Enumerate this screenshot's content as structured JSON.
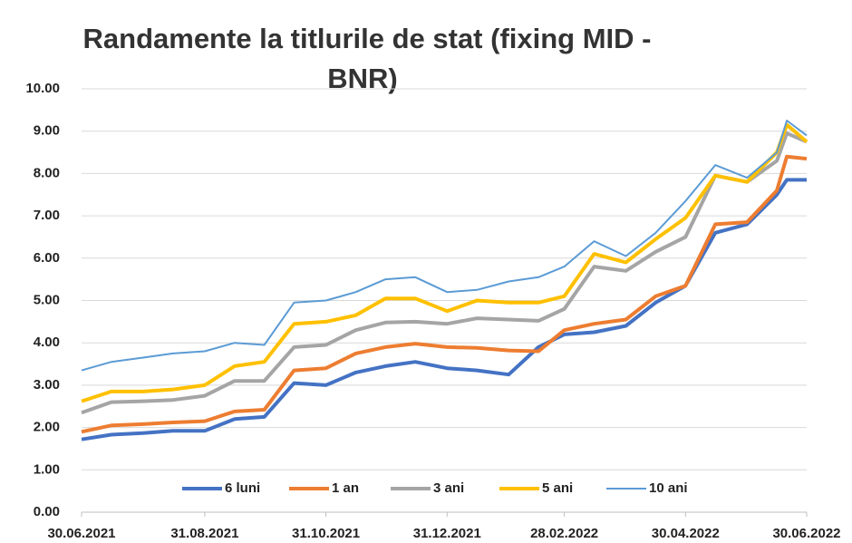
{
  "chart_data": {
    "type": "line",
    "title": [
      "Randamente la titlurile de stat (fixing MID -",
      "BNR)"
    ],
    "x": [
      "30.06.2021",
      "15.07.2021",
      "31.07.2021",
      "15.08.2021",
      "31.08.2021",
      "15.09.2021",
      "30.09.2021",
      "15.10.2021",
      "31.10.2021",
      "15.11.2021",
      "30.11.2021",
      "15.12.2021",
      "31.12.2021",
      "15.01.2022",
      "31.01.2022",
      "15.02.2022",
      "28.02.2022",
      "15.03.2022",
      "31.03.2022",
      "15.04.2022",
      "30.04.2022",
      "15.05.2022",
      "31.05.2022",
      "15.06.2022",
      "20.06.2022",
      "30.06.2022"
    ],
    "series": [
      {
        "name": "6 luni",
        "color": "#4472c4",
        "line_width": 4,
        "values": [
          1.72,
          1.83,
          1.87,
          1.92,
          1.92,
          2.2,
          2.25,
          3.05,
          3.0,
          3.3,
          3.45,
          3.55,
          3.4,
          3.35,
          3.25,
          3.9,
          4.2,
          4.25,
          4.4,
          4.95,
          5.35,
          6.6,
          6.8,
          7.5,
          7.85,
          7.85
        ]
      },
      {
        "name": "1 an",
        "color": "#ed7d31",
        "line_width": 4,
        "values": [
          1.9,
          2.05,
          2.08,
          2.12,
          2.15,
          2.38,
          2.42,
          3.35,
          3.4,
          3.75,
          3.9,
          3.98,
          3.9,
          3.88,
          3.82,
          3.8,
          4.3,
          4.45,
          4.55,
          5.1,
          5.35,
          6.8,
          6.85,
          7.6,
          8.4,
          8.35
        ]
      },
      {
        "name": "3 ani",
        "color": "#a5a5a5",
        "line_width": 4,
        "values": [
          2.35,
          2.6,
          2.62,
          2.65,
          2.75,
          3.1,
          3.1,
          3.9,
          3.95,
          4.3,
          4.48,
          4.5,
          4.45,
          4.58,
          4.55,
          4.52,
          4.8,
          5.8,
          5.7,
          6.15,
          6.5,
          7.95,
          7.8,
          8.3,
          8.95,
          8.75
        ]
      },
      {
        "name": "5 ani",
        "color": "#ffc000",
        "line_width": 4,
        "values": [
          2.62,
          2.85,
          2.85,
          2.9,
          3.0,
          3.45,
          3.55,
          4.45,
          4.5,
          4.65,
          5.05,
          5.05,
          4.75,
          5.0,
          4.95,
          4.95,
          5.1,
          6.1,
          5.9,
          6.45,
          6.95,
          7.95,
          7.8,
          8.5,
          9.15,
          8.75
        ]
      },
      {
        "name": "10 ani",
        "color": "#5b9bd5",
        "line_width": 2,
        "values": [
          3.35,
          3.55,
          3.65,
          3.75,
          3.8,
          4.0,
          3.95,
          4.95,
          5.0,
          5.2,
          5.5,
          5.55,
          5.2,
          5.25,
          5.45,
          5.55,
          5.8,
          6.4,
          6.05,
          6.6,
          7.35,
          8.2,
          7.9,
          8.5,
          9.25,
          8.9
        ]
      }
    ],
    "xlim": [
      "30.06.2021",
      "30.06.2022"
    ],
    "xticks": [
      "30.06.2021",
      "31.08.2021",
      "31.10.2021",
      "31.12.2021",
      "28.02.2022",
      "30.04.2022",
      "30.06.2022"
    ],
    "ylim": [
      0,
      10
    ],
    "yticks": [
      {
        "value": 0,
        "label": "0.00"
      },
      {
        "value": 1,
        "label": "1.00"
      },
      {
        "value": 2,
        "label": "2.00"
      },
      {
        "value": 3,
        "label": "3.00"
      },
      {
        "value": 4,
        "label": "4.00"
      },
      {
        "value": 5,
        "label": "5.00"
      },
      {
        "value": 6,
        "label": "6.00"
      },
      {
        "value": 7,
        "label": "7.00"
      },
      {
        "value": 8,
        "label": "8.00"
      },
      {
        "value": 9,
        "label": "9.00"
      },
      {
        "value": 10,
        "label": "10.00"
      }
    ],
    "grid": true,
    "legend": "lower center"
  }
}
